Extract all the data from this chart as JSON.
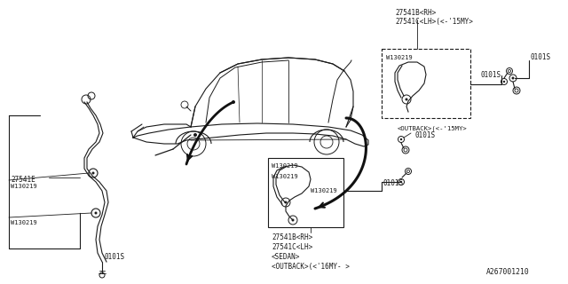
{
  "bg_color": "#ffffff",
  "fig_width": 6.4,
  "fig_height": 3.2,
  "dpi": 100,
  "line_color": "#1a1a1a",
  "text_color": "#1a1a1a",
  "font_size": 5.5,
  "labels": {
    "top_right_1": "27541B<RH>",
    "top_right_2": "27541C<LH>(<-'15MY>",
    "w130219": "W130219",
    "0101s": "0101S",
    "outback_old": "<OUTBACK>(<-'15MY>",
    "bottom_1": "27541B<RH>",
    "bottom_2": "27541C<LH>",
    "bottom_3": "<SEDAN>",
    "bottom_4": "<OUTBACK>(<'16MY- >",
    "left_part": "27541E",
    "part_num": "A267001210"
  }
}
